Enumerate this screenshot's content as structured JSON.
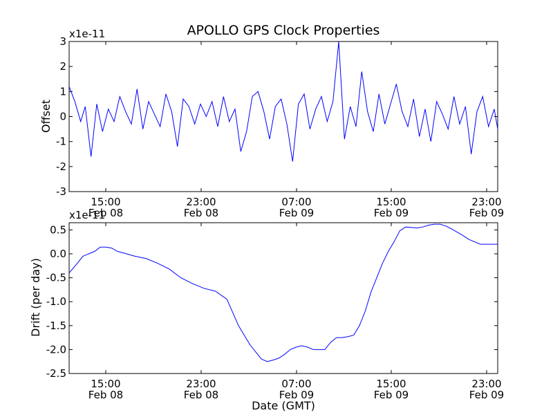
{
  "figure": {
    "title": "APOLLO GPS Clock Properties"
  },
  "colors": {
    "line": "#0000ff",
    "axes": "#000000",
    "background": "#ffffff"
  },
  "chart_data": [
    {
      "type": "line",
      "ylabel": "Offset",
      "offset_text": "x1e-11",
      "xlabel": "",
      "ylim": [
        -3,
        3
      ],
      "yticks": [
        "-3",
        "-2",
        "-1",
        "0",
        "1",
        "2",
        "3"
      ],
      "xlim_hours": [
        11.3,
        48.5
      ],
      "xticks": [
        {
          "time": "15:00",
          "date": "Feb 08"
        },
        {
          "time": "23:00",
          "date": "Feb 08"
        },
        {
          "time": "07:00",
          "date": "Feb 09"
        },
        {
          "time": "15:00",
          "date": "Feb 09"
        },
        {
          "time": "23:00",
          "date": "Feb 09"
        }
      ],
      "grid": false,
      "series": [
        {
          "x_hours": [
            11.3,
            11.8,
            12.3,
            12.7,
            13.2,
            13.7,
            14.2,
            14.7,
            15.2,
            15.7,
            16.2,
            16.7,
            17.2,
            17.7,
            18.2,
            18.7,
            19.2,
            19.7,
            20.2,
            20.7,
            21.2,
            21.7,
            22.2,
            22.7,
            23.2,
            23.7,
            24.2,
            24.7,
            25.2,
            25.7,
            26.2,
            26.7,
            27.2,
            27.7,
            28.2,
            28.7,
            29.2,
            29.7,
            30.2,
            30.7,
            31.2,
            31.7,
            32.2,
            32.7,
            33.2,
            33.7,
            34.2,
            34.7,
            35.2,
            35.7,
            36.2,
            36.7,
            37.2,
            37.7,
            38.2,
            38.7,
            39.2,
            39.7,
            40.2,
            40.7,
            41.2,
            41.7,
            42.2,
            42.7,
            43.2,
            43.7,
            44.2,
            44.7,
            45.2,
            45.7,
            46.2,
            46.7,
            47.2,
            47.7,
            48.2,
            48.5
          ],
          "values": [
            1.2,
            0.6,
            -0.2,
            0.4,
            -1.6,
            0.5,
            -0.6,
            0.3,
            -0.2,
            0.8,
            0.2,
            -0.3,
            1.1,
            -0.5,
            0.6,
            0.1,
            -0.4,
            0.9,
            0.2,
            -1.2,
            0.7,
            0.4,
            -0.3,
            0.5,
            0.0,
            0.6,
            -0.4,
            0.8,
            -0.2,
            0.3,
            -1.4,
            -0.6,
            0.8,
            1.0,
            0.2,
            -0.9,
            0.4,
            0.7,
            -0.3,
            -1.8,
            0.5,
            0.9,
            -0.5,
            0.3,
            0.8,
            -0.2,
            0.6,
            3.0,
            -0.9,
            0.4,
            -0.4,
            1.8,
            0.2,
            -0.6,
            0.9,
            -0.3,
            0.5,
            1.3,
            0.2,
            -0.4,
            0.7,
            -0.8,
            0.3,
            -1.0,
            0.6,
            0.1,
            -0.5,
            0.8,
            -0.3,
            0.4,
            -1.5,
            0.2,
            0.8,
            -0.4,
            0.3,
            -0.5
          ]
        }
      ]
    },
    {
      "type": "line",
      "ylabel": "Drift (per day)",
      "offset_text": "x1e-11",
      "xlabel": "Date (GMT)",
      "ylim": [
        -2.5,
        0.65
      ],
      "yticks": [
        "-2.5",
        "-2.0",
        "-1.5",
        "-1.0",
        "-0.5",
        "0.0",
        "0.5"
      ],
      "xlim_hours": [
        11.3,
        48.5
      ],
      "xticks": [
        {
          "time": "15:00",
          "date": "Feb 08"
        },
        {
          "time": "23:00",
          "date": "Feb 08"
        },
        {
          "time": "07:00",
          "date": "Feb 09"
        },
        {
          "time": "15:00",
          "date": "Feb 09"
        },
        {
          "time": "23:00",
          "date": "Feb 09"
        }
      ],
      "grid": false,
      "series": [
        {
          "x_hours": [
            11.3,
            12.0,
            12.5,
            13.0,
            13.5,
            14.0,
            14.5,
            15.0,
            15.5,
            16.0,
            17.0,
            18.0,
            19.0,
            20.0,
            21.0,
            22.0,
            23.0,
            24.0,
            25.0,
            26.0,
            27.0,
            27.5,
            28.0,
            28.5,
            29.0,
            29.5,
            30.0,
            30.5,
            31.0,
            31.5,
            32.0,
            32.5,
            33.0,
            33.5,
            34.0,
            34.5,
            35.0,
            35.5,
            36.0,
            36.5,
            37.0,
            37.5,
            38.0,
            38.5,
            39.0,
            39.5,
            40.0,
            40.5,
            41.0,
            41.5,
            42.0,
            42.5,
            43.0,
            43.5,
            44.0,
            44.5,
            45.0,
            45.5,
            46.0,
            46.5,
            47.0,
            47.5,
            48.0,
            48.5
          ],
          "values": [
            -0.4,
            -0.2,
            -0.05,
            0.0,
            0.05,
            0.14,
            0.14,
            0.12,
            0.05,
            0.02,
            -0.05,
            -0.1,
            -0.2,
            -0.32,
            -0.5,
            -0.62,
            -0.72,
            -0.78,
            -0.95,
            -1.5,
            -1.9,
            -2.05,
            -2.2,
            -2.25,
            -2.22,
            -2.18,
            -2.1,
            -2.0,
            -1.95,
            -1.92,
            -1.95,
            -2.0,
            -2.0,
            -2.0,
            -1.85,
            -1.75,
            -1.75,
            -1.73,
            -1.7,
            -1.5,
            -1.2,
            -0.8,
            -0.5,
            -0.2,
            0.05,
            0.25,
            0.48,
            0.56,
            0.55,
            0.54,
            0.56,
            0.6,
            0.62,
            0.62,
            0.58,
            0.52,
            0.45,
            0.38,
            0.3,
            0.25,
            0.2,
            0.2,
            0.2,
            0.2
          ]
        }
      ]
    }
  ]
}
